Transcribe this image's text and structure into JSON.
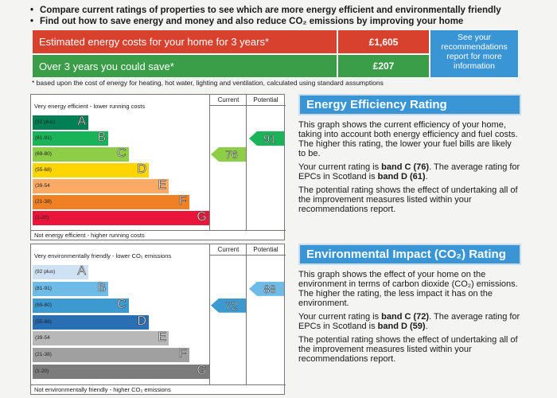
{
  "intro": {
    "bullets": [
      "Compare current ratings of properties to see which are more energy efficient and environmentally friendly",
      "Find out how to save energy and money and also reduce CO₂ emissions by improving your home"
    ]
  },
  "costs": {
    "rows": [
      {
        "label": "Estimated energy costs for your home for 3 years*",
        "value": "£1,605"
      },
      {
        "label": "Over 3 years you could save*",
        "value": "£207"
      }
    ],
    "note": "See your recommendations report for more information"
  },
  "footnote": "* based upon the cost of energy for heating, hot water, lighting and ventilation, calculated using standard assumptions",
  "ratings": [
    {
      "title": "Energy Efficiency Rating",
      "top_label": "Very energy efficient - lower running costs",
      "bottom_label": "Not energy efficient - higher running costs",
      "columns": [
        "Current",
        "Potential"
      ],
      "bands": [
        {
          "range": "(92 plus)",
          "letter": "A",
          "color": "#008054"
        },
        {
          "range": "(81-91)",
          "letter": "B",
          "color": "#19b459"
        },
        {
          "range": "(69-80)",
          "letter": "C",
          "color": "#8dce46"
        },
        {
          "range": "(55-68)",
          "letter": "D",
          "color": "#ffd500"
        },
        {
          "range": "(39-54",
          "letter": "E",
          "color": "#fcaa65"
        },
        {
          "range": "(21-38)",
          "letter": "F",
          "color": "#ef8023"
        },
        {
          "range": "(1-20)",
          "letter": "G",
          "color": "#e9153b"
        }
      ],
      "current": 76,
      "potential": 91,
      "paragraphs": [
        [
          "This graph shows the current efficiency of your home, taking into account both energy efficiency and fuel costs. The higher this rating, the lower your fuel bills are likely to be."
        ],
        [
          "Your current rating is ",
          "band C (76)",
          ". The average rating for EPCs in Scotland is ",
          "band D (61)",
          "."
        ],
        [
          "The potential rating shows the effect of undertaking all of the improvement measures listed within your recommendations report."
        ]
      ]
    },
    {
      "title": "Environmental Impact (CO₂) Rating",
      "top_label": "Very environmentally friendly - lower CO₂ emissions",
      "bottom_label": "Not environmentally friendly - higher CO₂ emissions",
      "columns": [
        "Current",
        "Potential"
      ],
      "bands": [
        {
          "range": "(92 plus)",
          "letter": "A",
          "color": "#cfe2f3"
        },
        {
          "range": "(81-91)",
          "letter": "B",
          "color": "#6fbbe8"
        },
        {
          "range": "(69-80)",
          "letter": "C",
          "color": "#3d9ad1"
        },
        {
          "range": "(55-68)",
          "letter": "D",
          "color": "#2a6eb4"
        },
        {
          "range": "(39-54",
          "letter": "E",
          "color": "#b8b8b8"
        },
        {
          "range": "(21-38)",
          "letter": "F",
          "color": "#a0a0a0"
        },
        {
          "range": "(1-20)",
          "letter": "G",
          "color": "#7c7c7c"
        }
      ],
      "current": 72,
      "potential": 88,
      "paragraphs": [
        [
          "This graph shows the effect of your home on the environment in terms of carbon dioxide (CO₂) emissions. The higher the rating, the less impact it has on the environment."
        ],
        [
          "Your current rating is ",
          "band C (72)",
          ". The average rating for EPCs in Scotland is ",
          "band D (59)",
          "."
        ],
        [
          "The potential rating shows the effect of undertaking all of the improvement measures listed within your recommendations report."
        ]
      ]
    }
  ]
}
